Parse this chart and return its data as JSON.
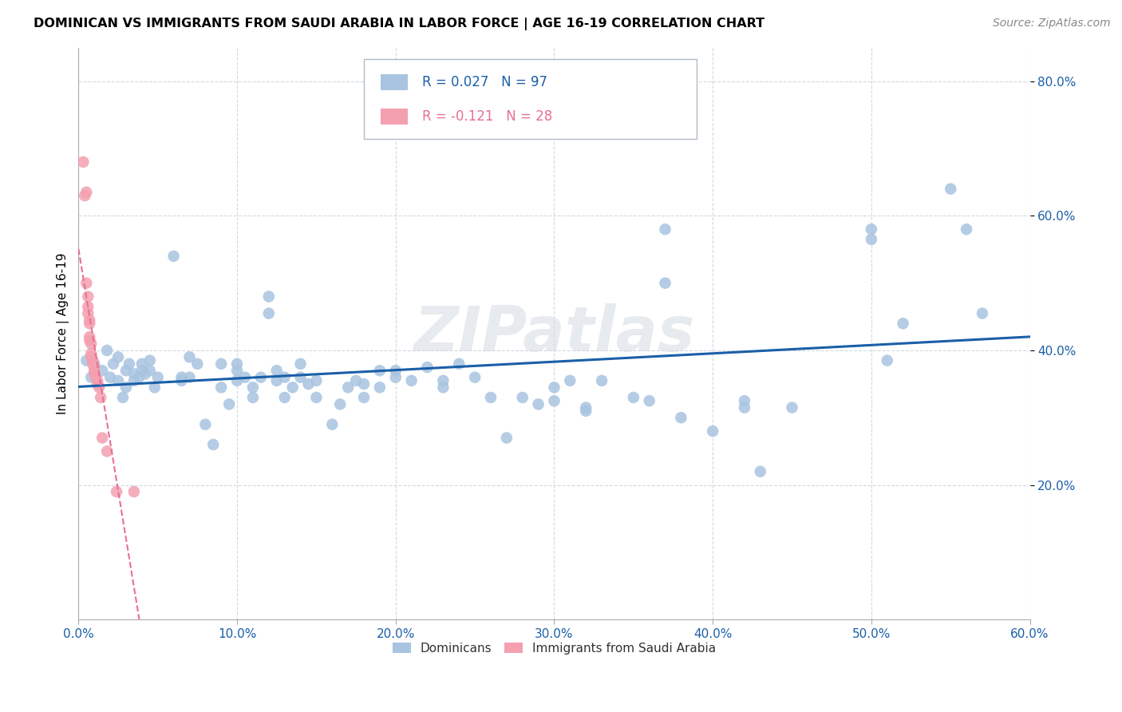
{
  "title": "DOMINICAN VS IMMIGRANTS FROM SAUDI ARABIA IN LABOR FORCE | AGE 16-19 CORRELATION CHART",
  "source": "Source: ZipAtlas.com",
  "ylabel": "In Labor Force | Age 16-19",
  "xlim": [
    0.0,
    0.6
  ],
  "ylim": [
    0.0,
    0.85
  ],
  "xticks": [
    0.0,
    0.1,
    0.2,
    0.3,
    0.4,
    0.5,
    0.6
  ],
  "yticks": [
    0.2,
    0.4,
    0.6,
    0.8
  ],
  "ytick_labels": [
    "20.0%",
    "40.0%",
    "60.0%",
    "80.0%"
  ],
  "xtick_labels": [
    "0.0%",
    "10.0%",
    "20.0%",
    "30.0%",
    "40.0%",
    "50.0%",
    "60.0%"
  ],
  "blue_color": "#a8c4e0",
  "pink_color": "#f4a0b0",
  "blue_line_color": "#1a5fa8",
  "pink_line_color": "#e87090",
  "legend_blue_label": "Dominicans",
  "legend_pink_label": "Immigrants from Saudi Arabia",
  "R_blue": 0.027,
  "N_blue": 97,
  "R_pink": -0.121,
  "N_pink": 28,
  "watermark": "ZIPatlas",
  "blue_dots": [
    [
      0.005,
      0.385
    ],
    [
      0.008,
      0.36
    ],
    [
      0.01,
      0.38
    ],
    [
      0.012,
      0.35
    ],
    [
      0.015,
      0.37
    ],
    [
      0.018,
      0.4
    ],
    [
      0.02,
      0.36
    ],
    [
      0.022,
      0.38
    ],
    [
      0.025,
      0.39
    ],
    [
      0.025,
      0.355
    ],
    [
      0.028,
      0.33
    ],
    [
      0.03,
      0.345
    ],
    [
      0.03,
      0.37
    ],
    [
      0.032,
      0.38
    ],
    [
      0.035,
      0.365
    ],
    [
      0.035,
      0.355
    ],
    [
      0.038,
      0.36
    ],
    [
      0.04,
      0.37
    ],
    [
      0.04,
      0.38
    ],
    [
      0.042,
      0.365
    ],
    [
      0.045,
      0.37
    ],
    [
      0.045,
      0.385
    ],
    [
      0.048,
      0.345
    ],
    [
      0.05,
      0.36
    ],
    [
      0.06,
      0.54
    ],
    [
      0.065,
      0.355
    ],
    [
      0.065,
      0.36
    ],
    [
      0.07,
      0.39
    ],
    [
      0.07,
      0.36
    ],
    [
      0.075,
      0.38
    ],
    [
      0.08,
      0.29
    ],
    [
      0.085,
      0.26
    ],
    [
      0.09,
      0.38
    ],
    [
      0.09,
      0.345
    ],
    [
      0.095,
      0.32
    ],
    [
      0.1,
      0.37
    ],
    [
      0.1,
      0.355
    ],
    [
      0.1,
      0.38
    ],
    [
      0.105,
      0.36
    ],
    [
      0.11,
      0.33
    ],
    [
      0.11,
      0.345
    ],
    [
      0.115,
      0.36
    ],
    [
      0.12,
      0.48
    ],
    [
      0.12,
      0.455
    ],
    [
      0.125,
      0.37
    ],
    [
      0.125,
      0.355
    ],
    [
      0.13,
      0.33
    ],
    [
      0.13,
      0.36
    ],
    [
      0.135,
      0.345
    ],
    [
      0.14,
      0.38
    ],
    [
      0.14,
      0.36
    ],
    [
      0.145,
      0.35
    ],
    [
      0.15,
      0.33
    ],
    [
      0.15,
      0.355
    ],
    [
      0.16,
      0.29
    ],
    [
      0.165,
      0.32
    ],
    [
      0.17,
      0.345
    ],
    [
      0.175,
      0.355
    ],
    [
      0.18,
      0.35
    ],
    [
      0.18,
      0.33
    ],
    [
      0.19,
      0.345
    ],
    [
      0.19,
      0.37
    ],
    [
      0.2,
      0.37
    ],
    [
      0.2,
      0.36
    ],
    [
      0.21,
      0.355
    ],
    [
      0.22,
      0.375
    ],
    [
      0.23,
      0.355
    ],
    [
      0.23,
      0.345
    ],
    [
      0.24,
      0.38
    ],
    [
      0.25,
      0.36
    ],
    [
      0.26,
      0.33
    ],
    [
      0.27,
      0.27
    ],
    [
      0.28,
      0.33
    ],
    [
      0.29,
      0.32
    ],
    [
      0.3,
      0.345
    ],
    [
      0.3,
      0.325
    ],
    [
      0.31,
      0.355
    ],
    [
      0.32,
      0.315
    ],
    [
      0.32,
      0.31
    ],
    [
      0.33,
      0.355
    ],
    [
      0.35,
      0.33
    ],
    [
      0.36,
      0.325
    ],
    [
      0.37,
      0.58
    ],
    [
      0.37,
      0.5
    ],
    [
      0.38,
      0.3
    ],
    [
      0.4,
      0.28
    ],
    [
      0.42,
      0.325
    ],
    [
      0.42,
      0.315
    ],
    [
      0.43,
      0.22
    ],
    [
      0.45,
      0.315
    ],
    [
      0.5,
      0.58
    ],
    [
      0.5,
      0.565
    ],
    [
      0.51,
      0.385
    ],
    [
      0.52,
      0.44
    ],
    [
      0.55,
      0.64
    ],
    [
      0.56,
      0.58
    ],
    [
      0.57,
      0.455
    ]
  ],
  "pink_dots": [
    [
      0.003,
      0.68
    ],
    [
      0.004,
      0.63
    ],
    [
      0.005,
      0.635
    ],
    [
      0.005,
      0.5
    ],
    [
      0.006,
      0.48
    ],
    [
      0.006,
      0.465
    ],
    [
      0.006,
      0.455
    ],
    [
      0.007,
      0.445
    ],
    [
      0.007,
      0.44
    ],
    [
      0.007,
      0.42
    ],
    [
      0.007,
      0.415
    ],
    [
      0.008,
      0.41
    ],
    [
      0.008,
      0.395
    ],
    [
      0.008,
      0.39
    ],
    [
      0.009,
      0.385
    ],
    [
      0.009,
      0.38
    ],
    [
      0.01,
      0.375
    ],
    [
      0.01,
      0.37
    ],
    [
      0.01,
      0.365
    ],
    [
      0.011,
      0.36
    ],
    [
      0.012,
      0.355
    ],
    [
      0.012,
      0.35
    ],
    [
      0.013,
      0.345
    ],
    [
      0.014,
      0.33
    ],
    [
      0.015,
      0.27
    ],
    [
      0.018,
      0.25
    ],
    [
      0.024,
      0.19
    ],
    [
      0.035,
      0.19
    ]
  ]
}
